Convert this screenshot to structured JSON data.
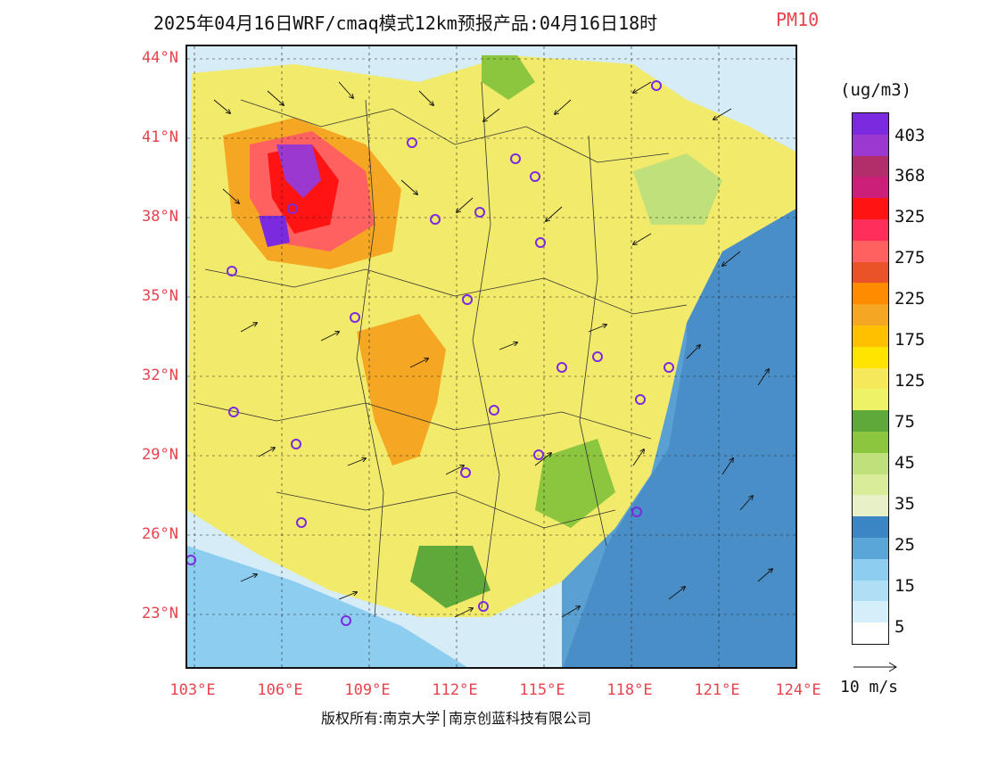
{
  "title": {
    "main": "2025年04月16日WRF/cmaq模式12km预报产品:04月16日18时",
    "pollutant": "PM10",
    "pollutant_color": "#e8434b"
  },
  "axes": {
    "lat_labels": [
      "44°N",
      "41°N",
      "38°N",
      "35°N",
      "32°N",
      "29°N",
      "26°N",
      "23°N"
    ],
    "lon_labels": [
      "103°E",
      "106°E",
      "109°E",
      "112°E",
      "115°E",
      "118°E",
      "121°E",
      "124°E"
    ]
  },
  "legend": {
    "unit": "(ug/m3)",
    "labels": [
      "403",
      "368",
      "325",
      "275",
      "225",
      "175",
      "125",
      "75",
      "45",
      "35",
      "25",
      "15",
      "5"
    ],
    "colors": [
      "#7b2ae0",
      "#9b38d0",
      "#b22e6b",
      "#cc1f7a",
      "#ff1313",
      "#ff2f5a",
      "#ff6060",
      "#ea5228",
      "#ff8c00",
      "#f5a623",
      "#ffc000",
      "#ffe400",
      "#f5e85a",
      "#eef266",
      "#5fa83a",
      "#8cc63f",
      "#bfe07a",
      "#d8ec9a",
      "#e8f0c8",
      "#3d86c6",
      "#5aa6d8",
      "#8ccdf0",
      "#b0dff5",
      "#d4eefa",
      "#ffffff"
    ],
    "wind_ref_label": "10 m/s"
  },
  "footer": {
    "copyright": "版权所有:南京大学│南京创蓝科技有限公司"
  },
  "map": {
    "land_base_color": "#f2ea6a",
    "sea_color": "#5aa0d2"
  }
}
